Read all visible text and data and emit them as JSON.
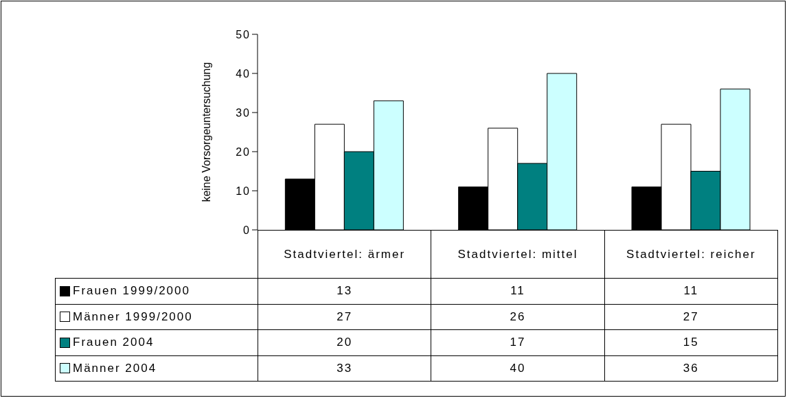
{
  "chart_data": {
    "type": "bar",
    "ylabel": "keine Vorsorgeuntersuchung",
    "categories": [
      "Stadtviertel: ärmer",
      "Stadtviertel: mittel",
      "Stadtviertel: reicher"
    ],
    "series": [
      {
        "name": "Frauen 1999/2000",
        "color": "#000000",
        "values": [
          13,
          11,
          11
        ]
      },
      {
        "name": "Männer 1999/2000",
        "color": "#ffffff",
        "values": [
          27,
          26,
          27
        ]
      },
      {
        "name": "Frauen 2004",
        "color": "#008080",
        "values": [
          20,
          17,
          15
        ]
      },
      {
        "name": "Männer 2004",
        "color": "#ccffff",
        "values": [
          33,
          40,
          36
        ]
      }
    ],
    "ylim": [
      0,
      50
    ],
    "yticks": [
      0,
      10,
      20,
      30,
      40,
      50
    ],
    "grid": false,
    "legend": "bottom",
    "data_labels": true
  }
}
